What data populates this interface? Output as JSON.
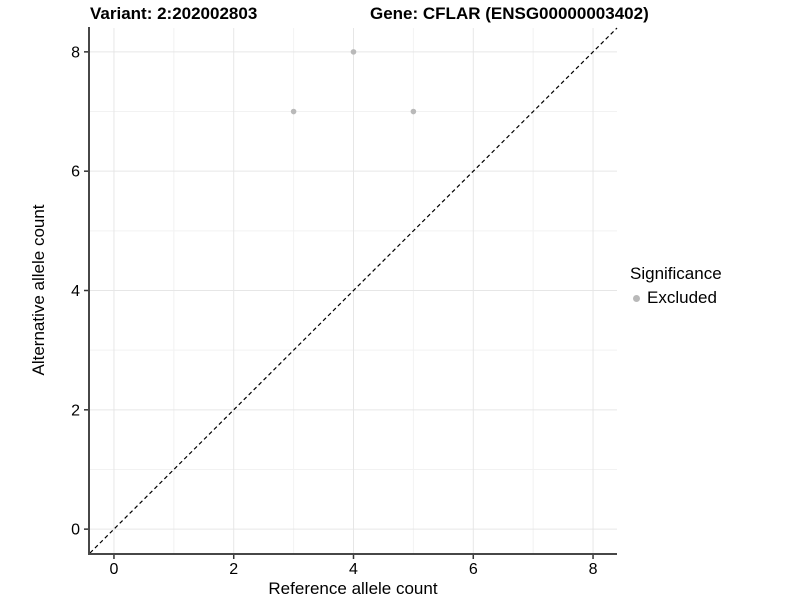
{
  "title": {
    "variant": "Variant: 2:202002803",
    "gene": "Gene: CFLAR (ENSG00000003402)"
  },
  "chart_data": {
    "type": "scatter",
    "titles": [
      "Variant: 2:202002803",
      "Gene: CFLAR (ENSG00000003402)"
    ],
    "xlabel": "Reference allele count",
    "ylabel": "Alternative allele count",
    "xlim": [
      -0.4,
      8.4
    ],
    "ylim": [
      -0.4,
      8.4
    ],
    "x_ticks": [
      0,
      2,
      4,
      6,
      8
    ],
    "y_ticks": [
      0,
      2,
      4,
      6,
      8
    ],
    "x_minor_ticks": [
      1,
      3,
      5,
      7
    ],
    "y_minor_ticks": [
      1,
      3,
      5,
      7
    ],
    "grid": "major+minor",
    "series": [
      {
        "name": "Excluded",
        "color": "#b9b9b9",
        "points": [
          [
            3,
            7
          ],
          [
            4,
            8
          ],
          [
            5,
            7
          ]
        ]
      }
    ],
    "reference_line": {
      "kind": "identity y=x",
      "style": "dashed",
      "color": "#000000"
    },
    "legend": {
      "title": "Significance",
      "position": "right",
      "entries": [
        {
          "label": "Excluded",
          "color": "#b9b9b9",
          "marker": "dot"
        }
      ]
    },
    "style": {
      "grid_major": "#e6e6e6",
      "grid_minor": "#f2f2f2",
      "axis_line": "#474747",
      "tick_color": "#333333",
      "background": "#ffffff",
      "text_color": "#000000"
    }
  }
}
